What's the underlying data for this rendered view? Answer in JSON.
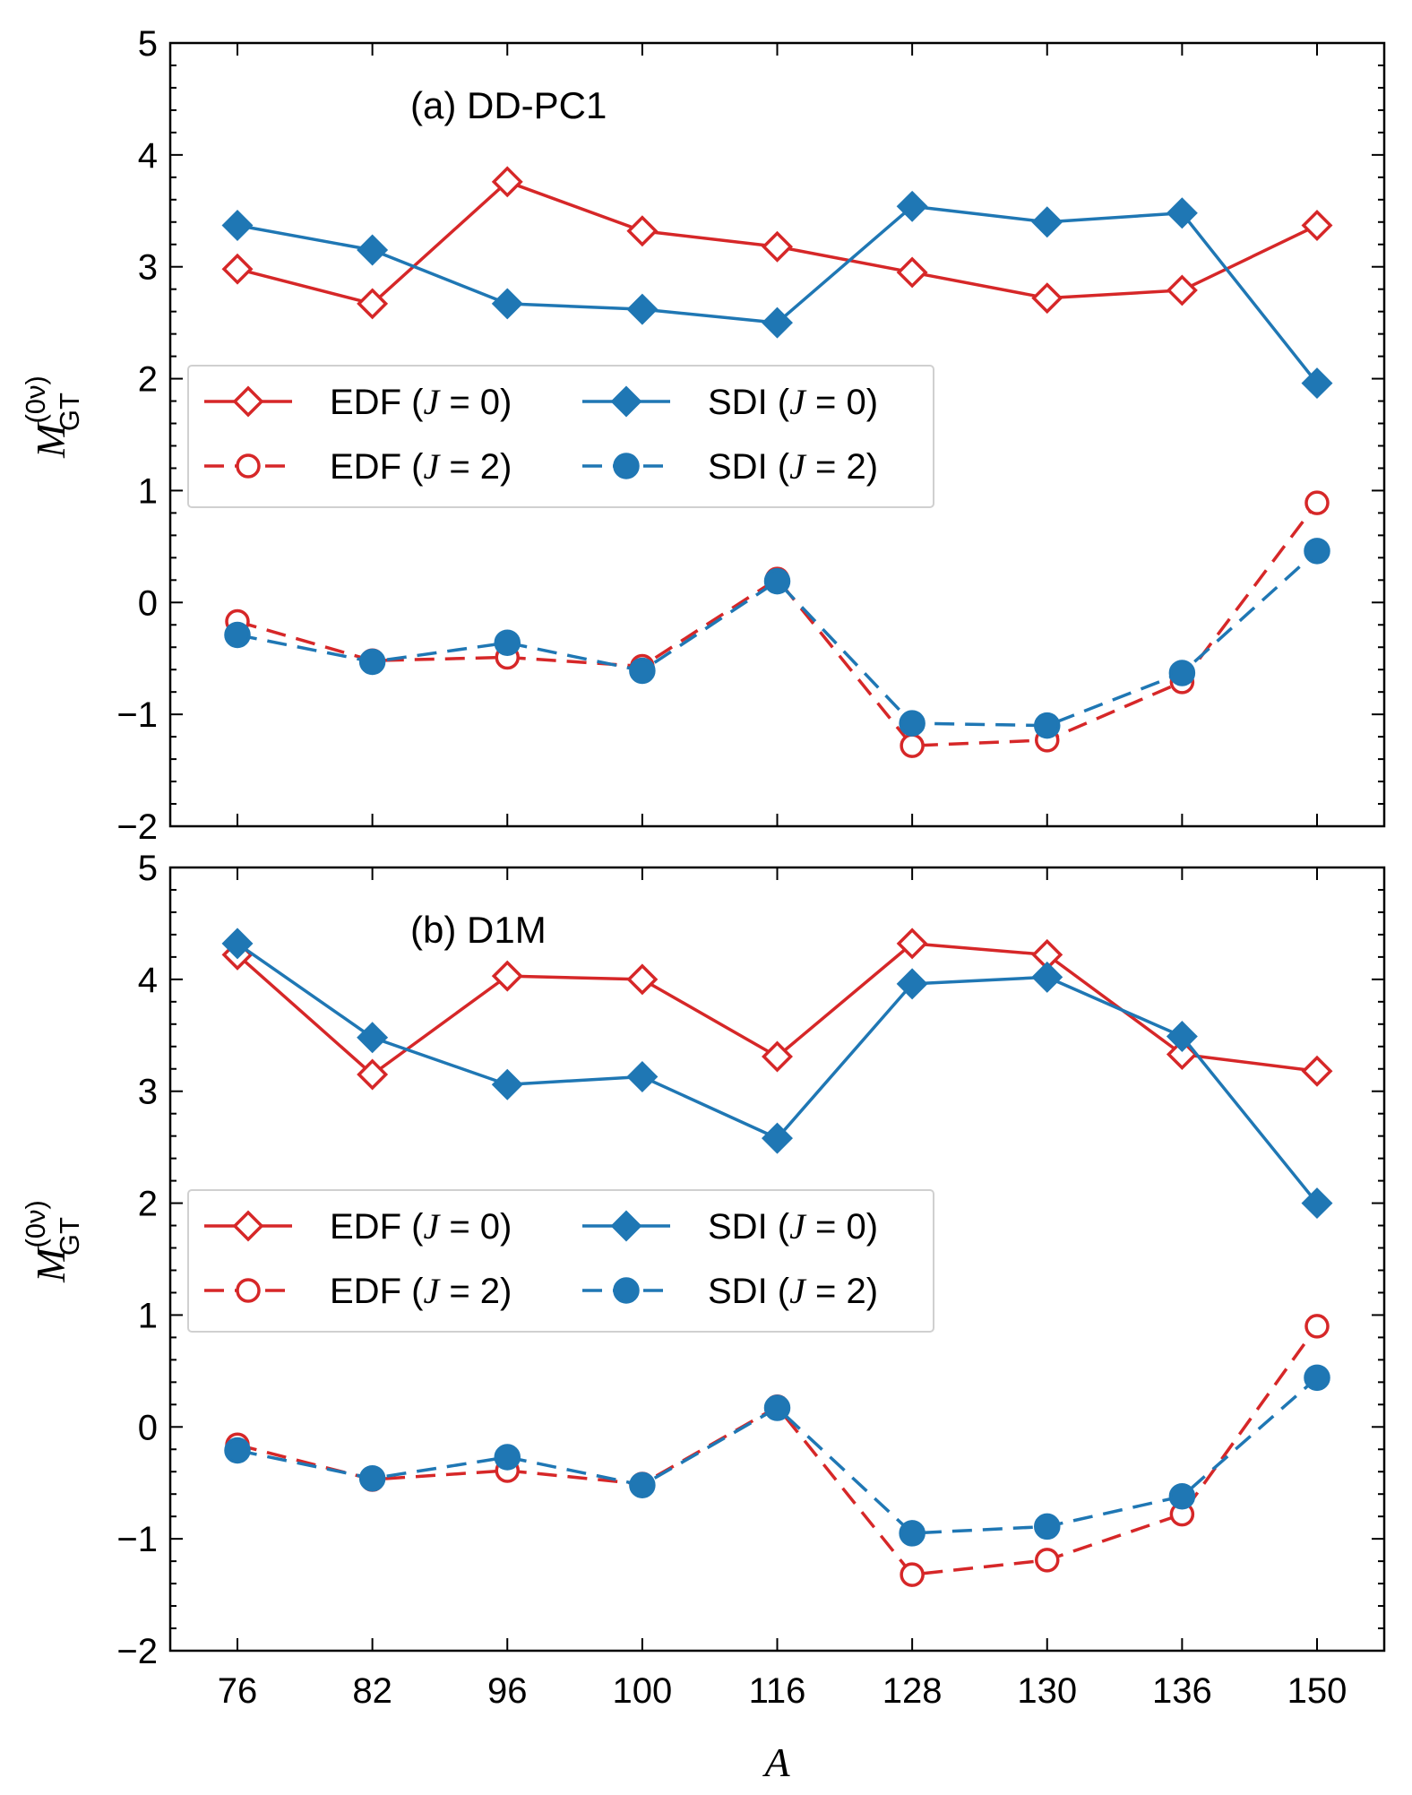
{
  "chart_data": [
    {
      "type": "line",
      "title": "(a) DD-PC1",
      "xlabel": "A",
      "ylabel": "M_GT^(0ν)",
      "categories": [
        "76",
        "82",
        "96",
        "100",
        "116",
        "128",
        "130",
        "136",
        "150"
      ],
      "ylim": [
        -2,
        5
      ],
      "yticks": [
        -2,
        -1,
        0,
        1,
        2,
        3,
        4,
        5
      ],
      "series": [
        {
          "name": "EDF (J = 0)",
          "values": [
            2.98,
            2.67,
            3.76,
            3.32,
            3.18,
            2.95,
            2.72,
            2.79,
            3.37
          ]
        },
        {
          "name": "EDF (J = 2)",
          "values": [
            -0.17,
            -0.52,
            -0.49,
            -0.57,
            0.21,
            -1.28,
            -1.23,
            -0.71,
            0.89
          ]
        },
        {
          "name": "SDI (J = 0)",
          "values": [
            3.37,
            3.15,
            2.67,
            2.62,
            2.5,
            3.54,
            3.4,
            3.48,
            1.96
          ]
        },
        {
          "name": "SDI (J = 2)",
          "values": [
            -0.29,
            -0.53,
            -0.36,
            -0.61,
            0.19,
            -1.08,
            -1.1,
            -0.63,
            0.46
          ]
        }
      ],
      "legend_position": "center-left"
    },
    {
      "type": "line",
      "title": "(b) D1M",
      "xlabel": "A",
      "ylabel": "M_GT^(0ν)",
      "categories": [
        "76",
        "82",
        "96",
        "100",
        "116",
        "128",
        "130",
        "136",
        "150"
      ],
      "ylim": [
        -2,
        5
      ],
      "yticks": [
        -2,
        -1,
        0,
        1,
        2,
        3,
        4,
        5
      ],
      "series": [
        {
          "name": "EDF (J = 0)",
          "values": [
            4.22,
            3.15,
            4.03,
            4.0,
            3.31,
            4.32,
            4.22,
            3.33,
            3.18
          ]
        },
        {
          "name": "EDF (J = 2)",
          "values": [
            -0.16,
            -0.47,
            -0.39,
            -0.51,
            0.18,
            -1.32,
            -1.19,
            -0.78,
            0.9
          ]
        },
        {
          "name": "SDI (J = 0)",
          "values": [
            4.32,
            3.48,
            3.06,
            3.13,
            2.58,
            3.96,
            4.02,
            3.49,
            2.0
          ]
        },
        {
          "name": "SDI (J = 2)",
          "values": [
            -0.21,
            -0.46,
            -0.27,
            -0.52,
            0.17,
            -0.95,
            -0.89,
            -0.62,
            0.44
          ]
        }
      ],
      "legend_position": "center-left"
    }
  ],
  "styles": {
    "EDF": {
      "color": "#d62728"
    },
    "SDI": {
      "color": "#1f77b4"
    }
  },
  "legend": {
    "edf_j0": {
      "name": "EDF",
      "j_value": "= 0)"
    },
    "sdi_j0": {
      "name": "SDI",
      "j_value": "= 0)"
    },
    "edf_j2": {
      "name": "EDF",
      "j_value": "= 2)"
    },
    "sdi_j2": {
      "name": "SDI",
      "j_value": "= 2)"
    }
  },
  "ylabel_parts": {
    "main": "M",
    "sup": "(0ν)",
    "sub": "GT"
  }
}
